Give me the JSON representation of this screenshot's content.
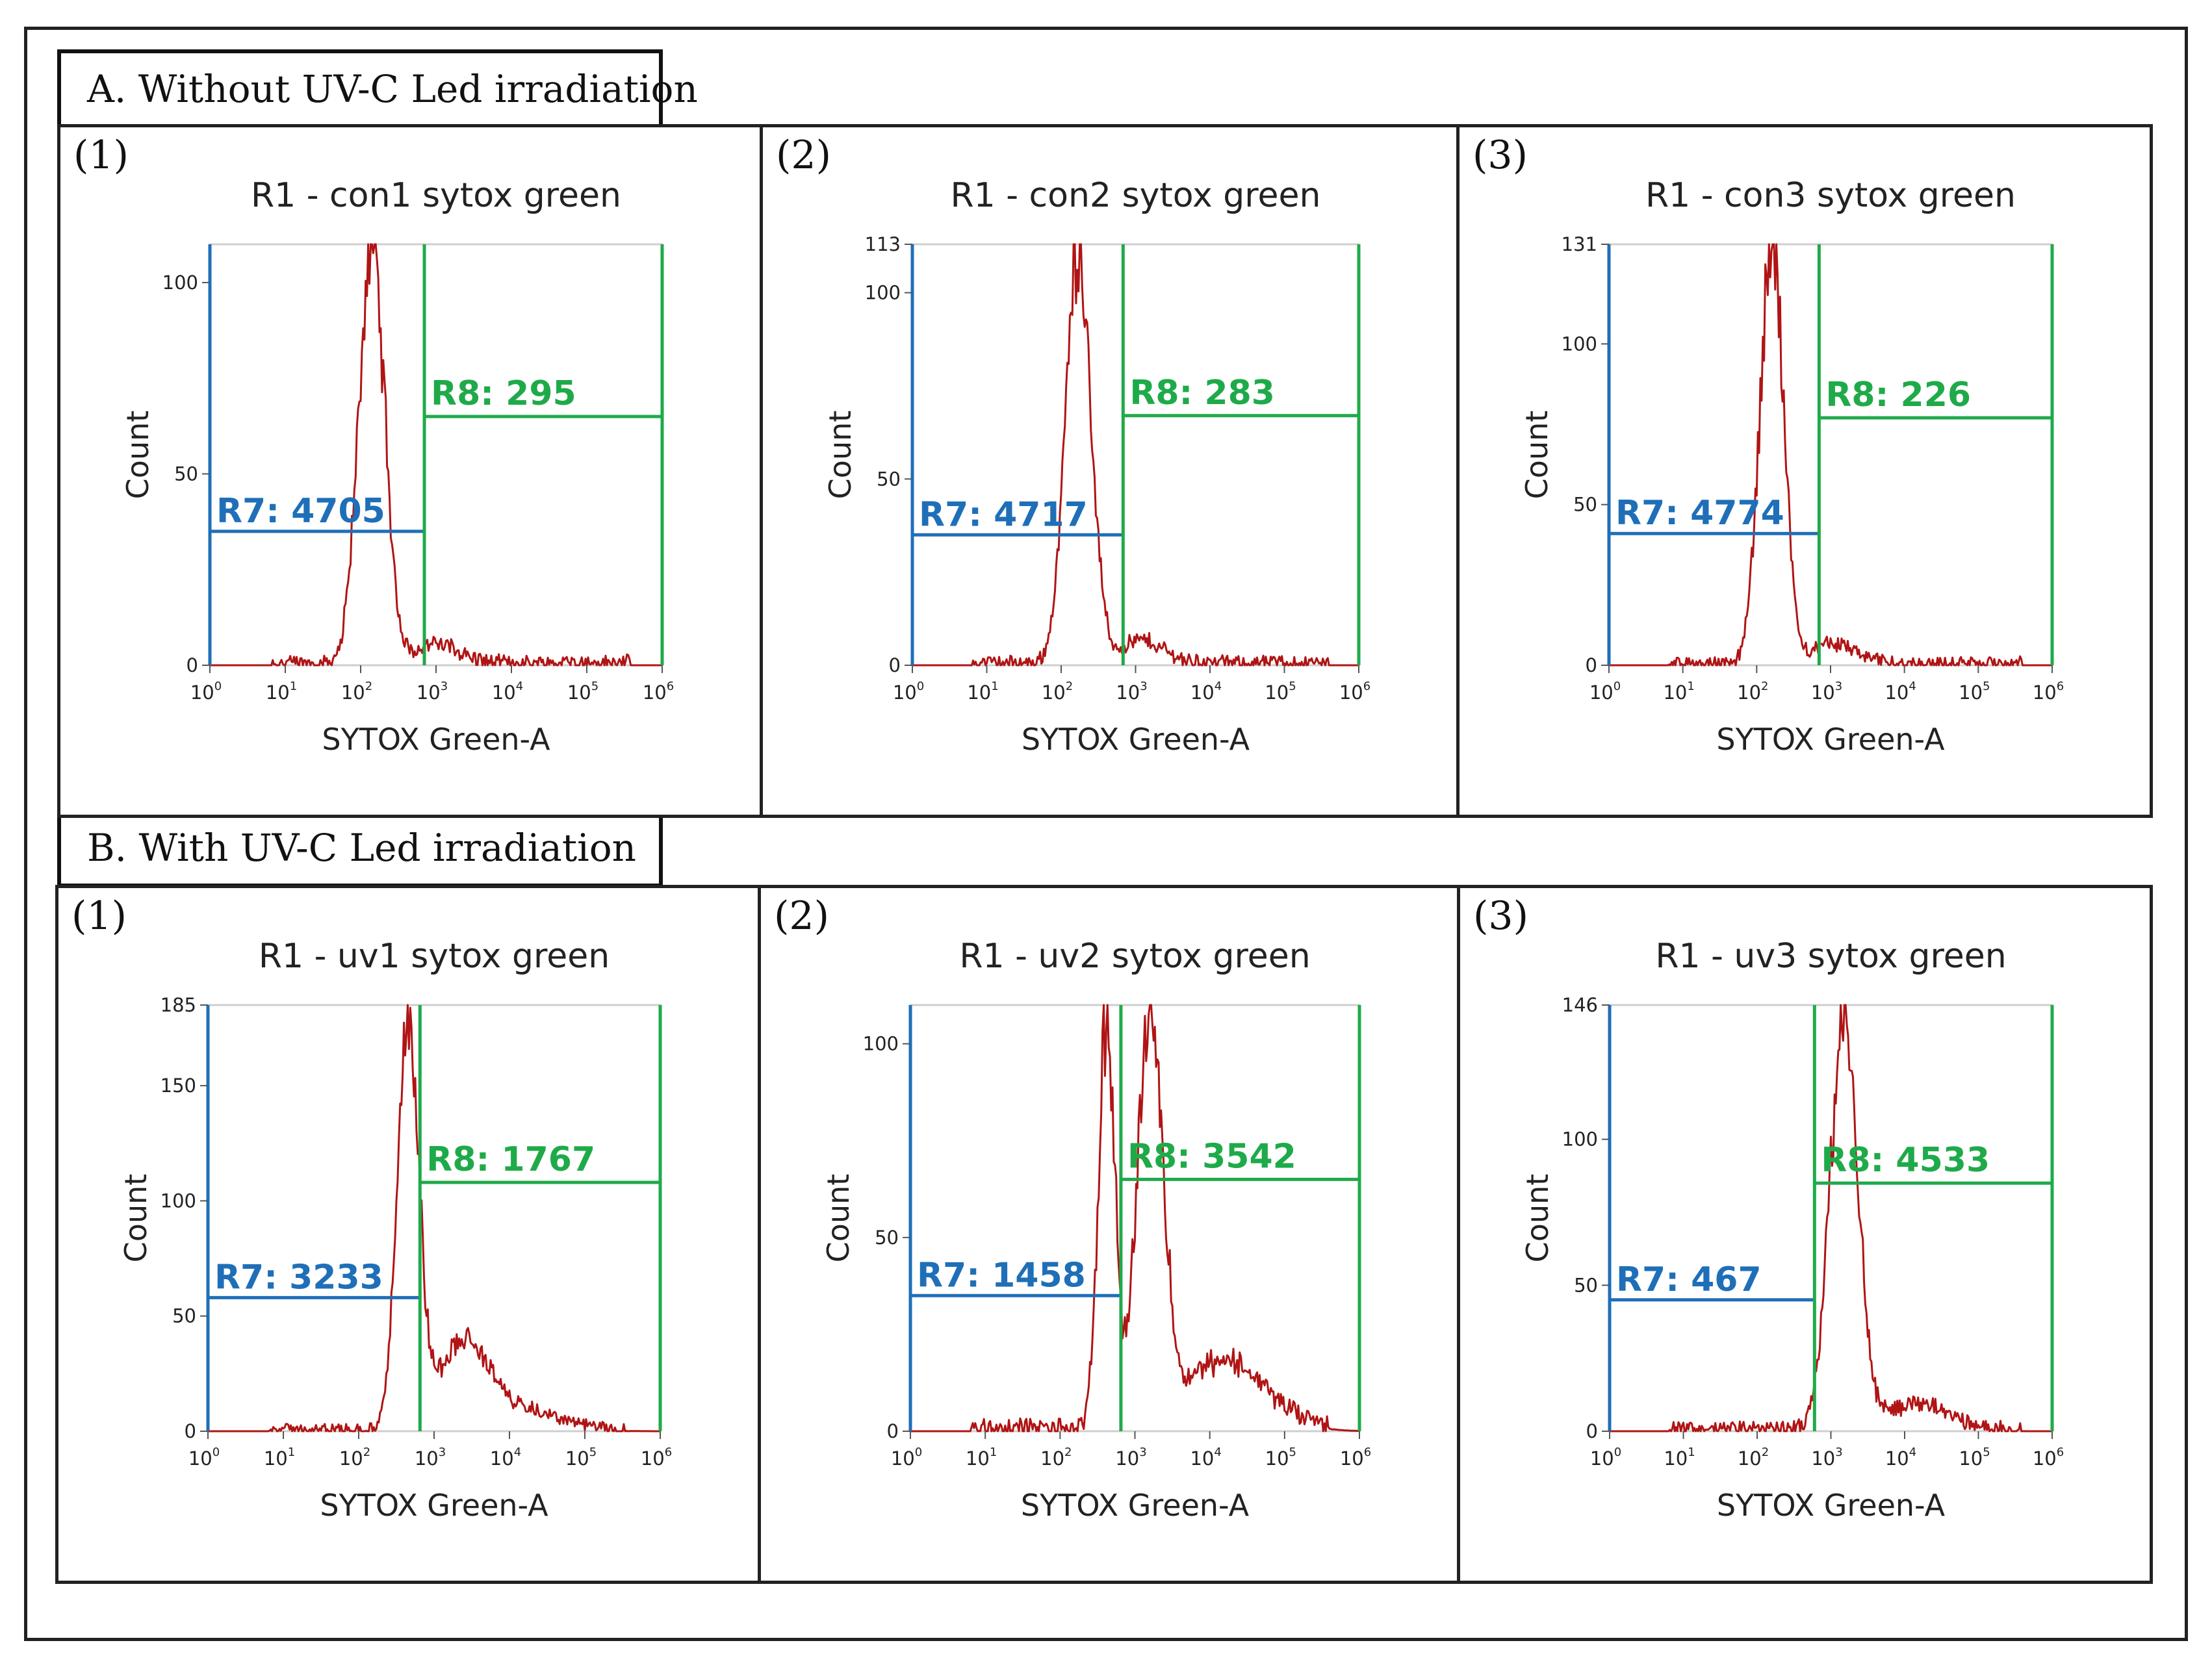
{
  "figure": {
    "section_a_label": "A. Without UV-C Led irradiation",
    "section_b_label": "B. With UV-C Led irradiation"
  },
  "colors": {
    "histogram": "#b01414",
    "r7_gate": "#1f6fb8",
    "r8_gate": "#1faa4a",
    "axis": "#1f6fb8",
    "frame": "#cfcfcf"
  },
  "chart_data": [
    {
      "panel": "(1)",
      "section": "A",
      "type": "area",
      "title": "R1 - con1 sytox green",
      "xlabel": "SYTOX Green-A",
      "ylabel": "Count",
      "xscale": "log",
      "xlim": [
        1,
        1000000
      ],
      "ylim": [
        0,
        110
      ],
      "yticks": [
        0,
        50,
        100
      ],
      "xticks": [
        "10^0",
        "10^1",
        "10^2",
        "10^3",
        "10^4",
        "10^5",
        "10^6"
      ],
      "gates": [
        {
          "label": "R7: 4705",
          "x_start": 1,
          "x_end": 700,
          "level": 35
        },
        {
          "label": "R8: 295",
          "x_start": 700,
          "x_end": 1000000,
          "level": 65
        }
      ],
      "peaks": [
        {
          "x": 140,
          "y": 110,
          "w": 0.17
        }
      ],
      "tail": {
        "x": 1000,
        "y": 5,
        "w": 0.3
      },
      "noise": 4
    },
    {
      "panel": "(2)",
      "section": "A",
      "type": "area",
      "title": "R1 - con2 sytox green",
      "xlabel": "SYTOX Green-A",
      "ylabel": "Count",
      "xscale": "log",
      "xlim": [
        1,
        1000000
      ],
      "ylim": [
        0,
        113
      ],
      "yticks": [
        0,
        50,
        100,
        113
      ],
      "xticks": [
        "10^0",
        "10^1",
        "10^2",
        "10^3",
        "10^4",
        "10^5",
        "10^6"
      ],
      "gates": [
        {
          "label": "R7: 4717",
          "x_start": 1,
          "x_end": 680,
          "level": 35
        },
        {
          "label": "R8: 283",
          "x_start": 680,
          "x_end": 1000000,
          "level": 67
        }
      ],
      "peaks": [
        {
          "x": 170,
          "y": 113,
          "w": 0.17
        }
      ],
      "tail": {
        "x": 1200,
        "y": 6,
        "w": 0.3
      },
      "noise": 4
    },
    {
      "panel": "(3)",
      "section": "A",
      "type": "area",
      "title": "R1 - con3 sytox green",
      "xlabel": "SYTOX Green-A",
      "ylabel": "Count",
      "xscale": "log",
      "xlim": [
        1,
        1000000
      ],
      "ylim": [
        0,
        131
      ],
      "yticks": [
        0,
        50,
        100,
        131
      ],
      "xticks": [
        "10^0",
        "10^1",
        "10^2",
        "10^3",
        "10^4",
        "10^5",
        "10^6"
      ],
      "gates": [
        {
          "label": "R7: 4774",
          "x_start": 1,
          "x_end": 700,
          "level": 41
        },
        {
          "label": "R8: 226",
          "x_start": 700,
          "x_end": 1000000,
          "level": 77
        }
      ],
      "peaks": [
        {
          "x": 160,
          "y": 131,
          "w": 0.16
        }
      ],
      "tail": {
        "x": 1100,
        "y": 6,
        "w": 0.3
      },
      "noise": 4
    },
    {
      "panel": "(1)",
      "section": "B",
      "type": "area",
      "title": "R1 - uv1 sytox green",
      "xlabel": "SYTOX Green-A",
      "ylabel": "Count",
      "xscale": "log",
      "xlim": [
        1,
        1000000
      ],
      "ylim": [
        0,
        185
      ],
      "yticks": [
        0,
        50,
        100,
        150,
        185
      ],
      "xticks": [
        "10^0",
        "10^1",
        "10^2",
        "10^3",
        "10^4",
        "10^5",
        "10^6"
      ],
      "gates": [
        {
          "label": "R7: 3233",
          "x_start": 1,
          "x_end": 650,
          "level": 58
        },
        {
          "label": "R8: 1767",
          "x_start": 650,
          "x_end": 1000000,
          "level": 108
        }
      ],
      "peaks": [
        {
          "x": 450,
          "y": 180,
          "w": 0.14
        },
        {
          "x": 2500,
          "y": 38,
          "w": 0.35
        }
      ],
      "tail": {
        "x": 20000,
        "y": 7,
        "w": 0.45
      },
      "noise": 5
    },
    {
      "panel": "(2)",
      "section": "B",
      "type": "area",
      "title": "R1 - uv2 sytox green",
      "xlabel": "SYTOX Green-A",
      "ylabel": "Count",
      "xscale": "log",
      "xlim": [
        1,
        1000000
      ],
      "ylim": [
        0,
        110
      ],
      "yticks": [
        0,
        50,
        100
      ],
      "xticks": [
        "10^0",
        "10^1",
        "10^2",
        "10^3",
        "10^4",
        "10^5",
        "10^6"
      ],
      "gates": [
        {
          "label": "R7: 1458",
          "x_start": 1,
          "x_end": 650,
          "level": 35
        },
        {
          "label": "R8: 3542",
          "x_start": 650,
          "x_end": 1000000,
          "level": 65
        }
      ],
      "peaks": [
        {
          "x": 420,
          "y": 105,
          "w": 0.11
        },
        {
          "x": 1600,
          "y": 105,
          "w": 0.17
        }
      ],
      "tail": {
        "x": 15000,
        "y": 18,
        "w": 0.55
      },
      "noise": 5
    },
    {
      "panel": "(3)",
      "section": "B",
      "type": "area",
      "title": "R1 - uv3 sytox green",
      "xlabel": "SYTOX Green-A",
      "ylabel": "Count",
      "xscale": "log",
      "xlim": [
        1,
        1000000
      ],
      "ylim": [
        0,
        146
      ],
      "yticks": [
        0,
        50,
        100,
        146
      ],
      "xticks": [
        "10^0",
        "10^1",
        "10^2",
        "10^3",
        "10^4",
        "10^5",
        "10^6"
      ],
      "gates": [
        {
          "label": "R7: 467",
          "x_start": 1,
          "x_end": 600,
          "level": 45
        },
        {
          "label": "R8: 4533",
          "x_start": 600,
          "x_end": 1000000,
          "level": 85
        }
      ],
      "peaks": [
        {
          "x": 1500,
          "y": 140,
          "w": 0.19
        }
      ],
      "tail": {
        "x": 15000,
        "y": 9,
        "w": 0.4
      },
      "noise": 5
    }
  ]
}
